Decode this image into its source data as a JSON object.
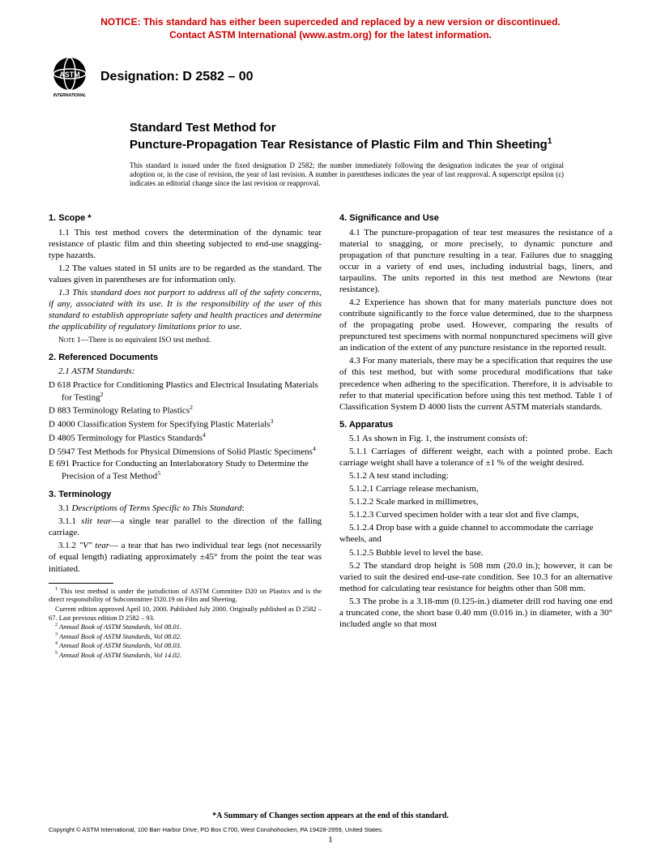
{
  "notice": {
    "line1": "NOTICE: This standard has either been superceded and replaced by a new version or discontinued.",
    "line2": "Contact ASTM International (www.astm.org) for the latest information.",
    "color": "#cc0000"
  },
  "designation": "Designation: D 2582 – 00",
  "title": {
    "pre": "Standard Test Method for",
    "main": "Puncture-Propagation Tear Resistance of Plastic Film and Thin Sheeting",
    "sup": "1"
  },
  "issuance": "This standard is issued under the fixed designation D 2582; the number immediately following the designation indicates the year of original adoption or, in the case of revision, the year of last revision. A number in parentheses indicates the year of last reapproval. A superscript epsilon (ε) indicates an editorial change since the last revision or reapproval.",
  "left": {
    "s1_head": "1. Scope *",
    "s1_1": "1.1 This test method covers the determination of the dynamic tear resistance of plastic film and thin sheeting subjected to end-use snagging-type hazards.",
    "s1_2": "1.2 The values stated in SI units are to be regarded as the standard. The values given in parentheses are for information only.",
    "s1_3": "1.3 This standard does not purport to address all of the safety concerns, if any, associated with its use. It is the responsibility of the user of this standard to establish appropriate safety and health practices and determine the applicability of regulatory limitations prior to use.",
    "note1_label": "Note 1",
    "note1_text": "—There is no equivalent ISO test method.",
    "s2_head": "2. Referenced Documents",
    "s2_1": "2.1 ASTM Standards:",
    "refs": [
      {
        "text": "D 618 Practice for Conditioning Plastics and Electrical Insulating Materials for Testing",
        "sup": "2"
      },
      {
        "text": "D 883 Terminology Relating to Plastics",
        "sup": "2"
      },
      {
        "text": "D 4000 Classification System for Specifying Plastic Materials",
        "sup": "3"
      },
      {
        "text": "D 4805 Terminology for Plastics Standards",
        "sup": "4"
      },
      {
        "text": "D 5947 Test Methods for Physical Dimensions of Solid Plastic Specimens",
        "sup": "4"
      },
      {
        "text": "E 691 Practice for Conducting an Interlaboratory Study to Determine the Precision of a Test Method",
        "sup": "5"
      }
    ],
    "s3_head": "3. Terminology",
    "s3_1": "3.1 Descriptions of Terms Specific to This Standard:",
    "s3_1_1": "3.1.1 slit tear—a single tear parallel to the direction of the falling carriage.",
    "s3_1_2": "3.1.2 \"V\" tear— a tear that has two individual tear legs (not necessarily of equal length) radiating approximately ±45° from the point the tear was initiated.",
    "footnotes": {
      "f1": "This test method is under the jurisdiction of ASTM Committee D20 on Plastics and is the direct responsibility of Subcommittee D20.19 on Film and Sheeting.",
      "f1b": "Current edition approved April 10, 2000. Published July 2000. Originally published as D 2582 – 67. Last previous edition D 2582 – 93.",
      "f2": "Annual Book of ASTM Standards, Vol 08.01.",
      "f3": "Annual Book of ASTM Standards, Vol 08.02.",
      "f4": "Annual Book of ASTM Standards, Vol 08.03.",
      "f5": "Annual Book of ASTM Standards, Vol 14.02."
    }
  },
  "right": {
    "s4_head": "4. Significance and Use",
    "s4_1": "4.1 The puncture-propagation of tear test measures the resistance of a material to snagging, or more precisely, to dynamic puncture and propagation of that puncture resulting in a tear. Failures due to snagging occur in a variety of end uses, including industrial bags, liners, and tarpaulins. The units reported in this test method are Newtons (tear resistance).",
    "s4_2": "4.2 Experience has shown that for many materials puncture does not contribute significantly to the force value determined, due to the sharpness of the propagating probe used. However, comparing the results of prepunctured test specimens with normal nonpunctured specimens will give an indication of the extent of any puncture resistance in the reported result.",
    "s4_3": "4.3 For many materials, there may be a specification that requires the use of this test method, but with some procedural modifications that take precedence when adhering to the specification. Therefore, it is advisable to refer to that material specification before using this test method. Table 1 of Classification System D 4000 lists the current ASTM materials standards.",
    "s5_head": "5. Apparatus",
    "s5_1": "5.1 As shown in Fig. 1, the instrument consists of:",
    "s5_1_1": "5.1.1 Carriages of different weight, each with a pointed probe. Each carriage weight shall have a tolerance of ±1 % of the weight desired.",
    "s5_1_2": "5.1.2 A test stand including:",
    "s5_1_2_1": "5.1.2.1 Carriage release mechanism,",
    "s5_1_2_2": "5.1.2.2 Scale marked in millimetres,",
    "s5_1_2_3": "5.1.2.3 Curved specimen holder with a tear slot and five clamps,",
    "s5_1_2_4": "5.1.2.4 Drop base with a guide channel to accommodate the carriage wheels, and",
    "s5_1_2_5": "5.1.2.5 Bubble level to level the base.",
    "s5_2": "5.2 The standard drop height is 508 mm (20.0 in.); however, it can be varied to suit the desired end-use-rate condition. See 10.3 for an alternative method for calculating tear resistance for heights other than 508 mm.",
    "s5_3": "5.3 The probe is a 3.18-mm (0.125-in.) diameter drill rod having one end a truncated cone, the short base 0.40 mm (0.016 in.) in diameter, with a 30° included angle so that most"
  },
  "bottom_note": "*A Summary of Changes section appears at the end of this standard.",
  "copyright": "Copyright © ASTM International, 100 Barr Harbor Drive, PO Box C700, West Conshohocken, PA 19428-2959, United States.",
  "page_number": "1",
  "logo_label": "INTERNATIONAL"
}
